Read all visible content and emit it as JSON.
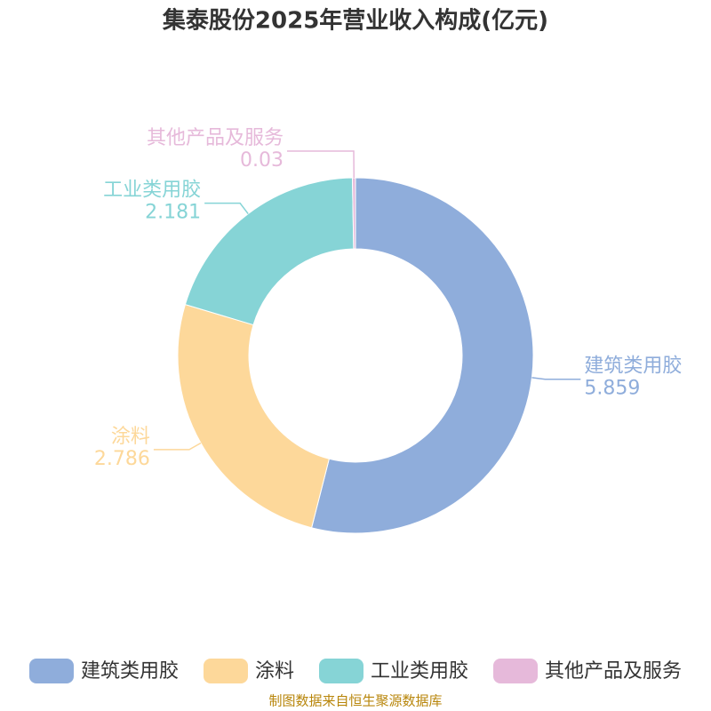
{
  "chart_data": {
    "type": "pie",
    "title": "集泰股份2025年营业收入构成(亿元)",
    "categories": [
      "建筑类用胶",
      "涂料",
      "工业类用胶",
      "其他产品及服务"
    ],
    "values": [
      5.859,
      2.786,
      2.181,
      0.03
    ],
    "colors": [
      "#8faddb",
      "#fdd89a",
      "#86d4d6",
      "#e6b9da"
    ],
    "source": "制图数据来自恒生聚源数据库"
  }
}
